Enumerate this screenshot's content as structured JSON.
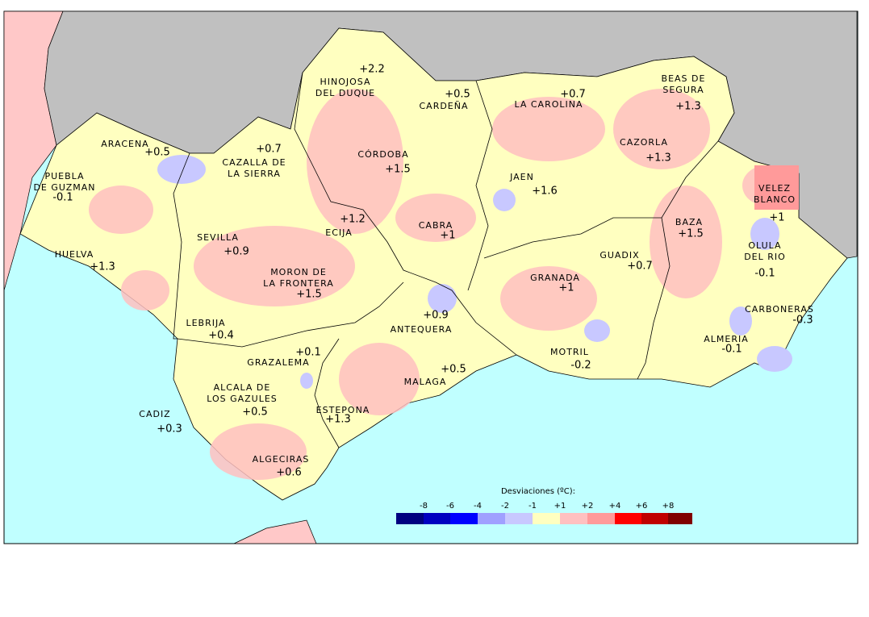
{
  "stations": [
    {
      "name": [
        "ARACENA"
      ],
      "value": "+0.5"
    },
    {
      "name": [
        "CAZALLA DE",
        "LA SIERRA"
      ],
      "value": "+0.7"
    },
    {
      "name": [
        "PUEBLA",
        "DE GUZMAN"
      ],
      "value": "-0.1"
    },
    {
      "name": [
        "HUELVA"
      ],
      "value": "+1.3"
    },
    {
      "name": [
        "SEVILLA"
      ],
      "value": "+0.9"
    },
    {
      "name": [
        "MORON DE",
        "LA FRONTERA"
      ],
      "value": "+1.5"
    },
    {
      "name": [
        "LEBRIJA"
      ],
      "value": "+0.4"
    },
    {
      "name": [
        "HINOJOSA",
        "DEL DUQUE"
      ],
      "value": "+2.2"
    },
    {
      "name": [
        "CÓRDOBA"
      ],
      "value": "+1.5"
    },
    {
      "name": [
        "CARDEÑA"
      ],
      "value": "+0.5"
    },
    {
      "name": [
        "ECIJA"
      ],
      "value": "+1.2"
    },
    {
      "name": [
        "CABRA"
      ],
      "value": "+1"
    },
    {
      "name": [
        "LA CAROLINA"
      ],
      "value": "+0.7"
    },
    {
      "name": [
        "JAEN"
      ],
      "value": "+1.6"
    },
    {
      "name": [
        "BEAS DE",
        "SEGURA"
      ],
      "value": "+1.3"
    },
    {
      "name": [
        "CAZORLA"
      ],
      "value": "+1.3"
    },
    {
      "name": [
        "VELEZ",
        "BLANCO"
      ],
      "value": "+1"
    },
    {
      "name": [
        "BAZA"
      ],
      "value": "+1.5"
    },
    {
      "name": [
        "OLULA",
        "DEL RIO"
      ],
      "value": "-0.1"
    },
    {
      "name": [
        "GUADIX"
      ],
      "value": "+0.7"
    },
    {
      "name": [
        "GRANADA"
      ],
      "value": "+1"
    },
    {
      "name": [
        "ANTEQUERA"
      ],
      "value": "+0.9"
    },
    {
      "name": [
        "CARBONERAS"
      ],
      "value": "-0.3"
    },
    {
      "name": [
        "ALMERIA"
      ],
      "value": "-0.1"
    },
    {
      "name": [
        "MOTRIL"
      ],
      "value": "-0.2"
    },
    {
      "name": [
        "MALAGA"
      ],
      "value": "+0.5"
    },
    {
      "name": [
        "GRAZALEMA"
      ],
      "value": "+0.1"
    },
    {
      "name": [
        "ALCALA DE",
        "LOS GAZULES"
      ],
      "value": "+0.5"
    },
    {
      "name": [
        "ESTEPONA"
      ],
      "value": "+1.3"
    },
    {
      "name": [
        "CADIZ"
      ],
      "value": "+0.3"
    },
    {
      "name": [
        "ALGECIRAS"
      ],
      "value": "+0.6"
    }
  ],
  "legend": {
    "title": "Desviaciones (ºC):",
    "ticks": [
      "-8",
      "-6",
      "-4",
      "-2",
      "-1",
      "+1",
      "+2",
      "+4",
      "+6",
      "+8"
    ]
  }
}
